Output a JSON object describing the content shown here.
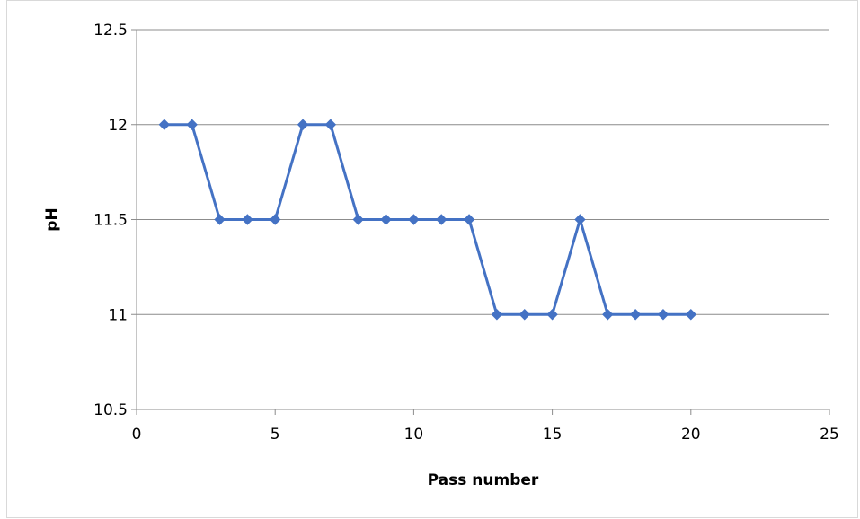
{
  "chart_data": {
    "type": "line",
    "title": "",
    "xlabel": "Pass number",
    "ylabel": "pH",
    "xlim": [
      0,
      25
    ],
    "ylim": [
      10.5,
      12.5
    ],
    "x_ticks": [
      0,
      5,
      10,
      15,
      20,
      25
    ],
    "y_ticks": [
      10.5,
      11,
      11.5,
      12,
      12.5
    ],
    "x_tick_labels": [
      "0",
      "5",
      "10",
      "15",
      "20",
      "25"
    ],
    "y_tick_labels": [
      "10.5",
      "11",
      "11.5",
      "12",
      "12.5"
    ],
    "grid": "horizontal",
    "legend": "none",
    "marker": "diamond",
    "series": [
      {
        "color": "#4472c4",
        "x": [
          1,
          2,
          3,
          4,
          5,
          6,
          7,
          8,
          9,
          10,
          11,
          12,
          13,
          14,
          15,
          16,
          17,
          18,
          19,
          20
        ],
        "y": [
          12,
          12,
          11.5,
          11.5,
          11.5,
          12,
          12,
          11.5,
          11.5,
          11.5,
          11.5,
          11.5,
          11,
          11,
          11,
          11.5,
          11,
          11,
          11,
          11
        ]
      }
    ]
  }
}
